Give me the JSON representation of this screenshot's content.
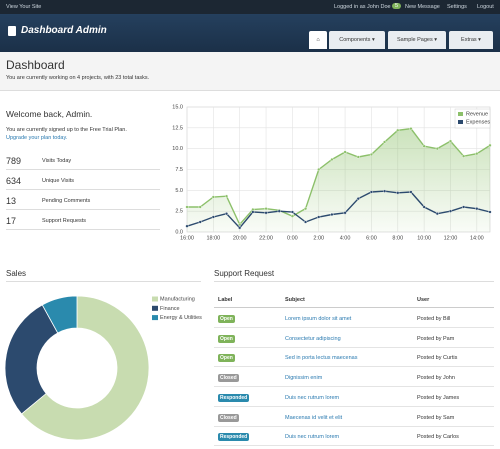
{
  "top_nav": {
    "site_link": "View Your Site",
    "logged_in": "Logged in as John Doe",
    "message_count": 5,
    "messages": "New Message",
    "settings": "Settings",
    "logout": "Logout"
  },
  "header": {
    "brand": "Dashboard Admin",
    "tabs": [
      "Components",
      "Sample Pages",
      "Extras"
    ]
  },
  "page": {
    "title": "Dashboard",
    "subtitle": "You are currently working on 4 projects, with 23 total tasks."
  },
  "welcome": {
    "title": "Welcome back, Admin.",
    "plan": "You are currently signed up to the Free Trial Plan.",
    "upgrade": "Upgrade your plan today.",
    "stats": [
      {
        "value": 789,
        "label": "Visits Today"
      },
      {
        "value": 634,
        "label": "Unique Visits"
      },
      {
        "value": 13,
        "label": "Pending Comments"
      },
      {
        "value": 17,
        "label": "Support Requests"
      }
    ]
  },
  "chart_data": [
    {
      "type": "line",
      "categories": [
        "16:00",
        null,
        "18:00",
        null,
        "20:00",
        null,
        "22:00",
        null,
        "0:00",
        null,
        "2:00",
        null,
        "4:00",
        null,
        "6:00",
        null,
        "8:00",
        null,
        "10:00",
        null,
        "12:00",
        null,
        "14:00",
        null
      ],
      "series": [
        {
          "name": "Revenue",
          "color": "#8cc06a",
          "values": [
            3.0,
            3.0,
            4.2,
            4.3,
            0.9,
            2.7,
            2.8,
            2.6,
            1.9,
            2.8,
            7.5,
            8.7,
            9.6,
            9.0,
            9.3,
            10.8,
            12.2,
            12.4,
            10.3,
            10.0,
            10.9,
            9.1,
            9.4,
            10.4
          ]
        },
        {
          "name": "Expenses",
          "color": "#2c4a6e",
          "values": [
            0.7,
            1.2,
            1.8,
            2.2,
            0.5,
            2.4,
            2.3,
            2.5,
            2.4,
            1.2,
            1.8,
            2.1,
            2.3,
            4.0,
            4.8,
            4.9,
            4.7,
            4.8,
            3.0,
            2.2,
            2.5,
            3.0,
            2.8,
            2.4
          ]
        }
      ],
      "ylim": [
        0,
        15
      ],
      "yticks": [
        {
          "value": 0,
          "label": "0.0"
        },
        {
          "value": 2.5,
          "label": "2.5"
        },
        {
          "value": 5,
          "label": "5.0"
        },
        {
          "value": 7.5,
          "label": "7.5"
        },
        {
          "value": 10,
          "label": "10.0"
        },
        {
          "value": 12.5,
          "label": "12.5"
        },
        {
          "value": 15,
          "label": "15.0"
        }
      ],
      "grid": true,
      "legend": "top-right"
    },
    {
      "type": "pie",
      "donut": true,
      "title": "Sales",
      "categories": [
        "Manufacturing",
        "Finance",
        "Energy & Utilities"
      ],
      "values": [
        64,
        28,
        8
      ],
      "colors": [
        "#c8dcb0",
        "#2c4a6e",
        "#2a8aad"
      ],
      "legend": "top-right"
    }
  ],
  "support": {
    "title": "Support Request",
    "columns": [
      "Label",
      "Subject",
      "User"
    ],
    "rows": [
      {
        "label": "Open",
        "color": "#7fb35a",
        "subject": "Lorem ipsum dolor sit amet",
        "user": "Posted by Bill"
      },
      {
        "label": "Open",
        "color": "#7fb35a",
        "subject": "Consectetur adipiscing",
        "user": "Posted by Pam"
      },
      {
        "label": "Open",
        "color": "#7fb35a",
        "subject": "Sed in porta lectus maecenas",
        "user": "Posted by Curtis"
      },
      {
        "label": "Closed",
        "color": "#999999",
        "subject": "Dignissim enim",
        "user": "Posted by John"
      },
      {
        "label": "Responded",
        "color": "#2a8aad",
        "subject": "Duis nec rutrum lorem",
        "user": "Posted by James"
      },
      {
        "label": "Closed",
        "color": "#999999",
        "subject": "Maecenas id velit et elit",
        "user": "Posted by Sam"
      },
      {
        "label": "Responded",
        "color": "#2a8aad",
        "subject": "Duis nec rutrum lorem",
        "user": "Posted by Carlos"
      }
    ]
  }
}
